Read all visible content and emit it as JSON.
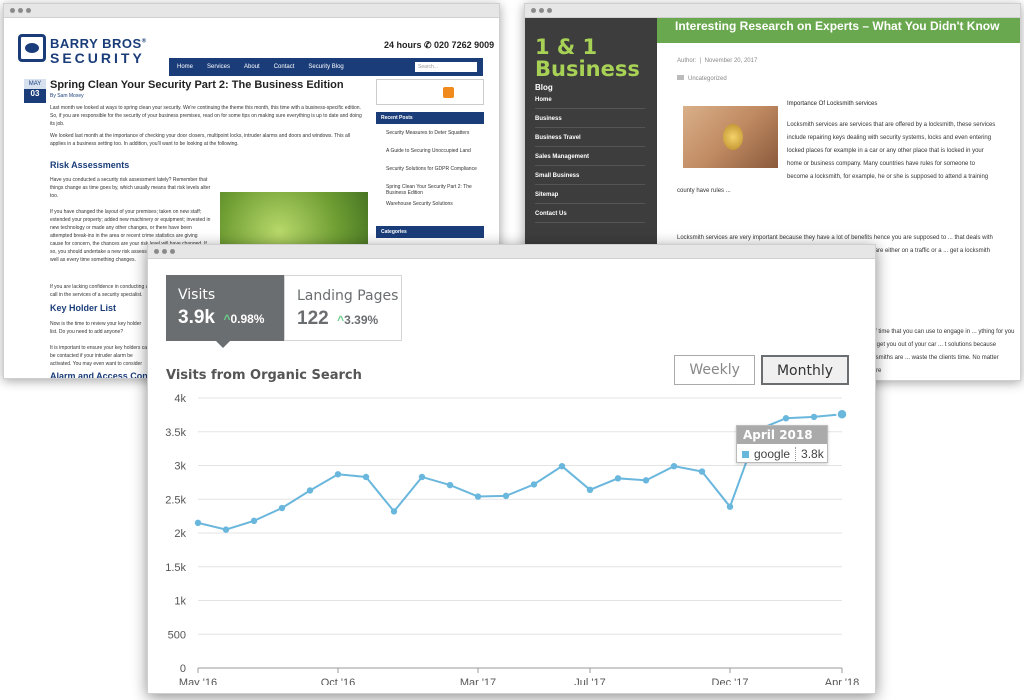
{
  "win1": {
    "brand_line1": "BARRY BROS",
    "brand_reg": "®",
    "brand_line2": "SECURITY",
    "hours": "24 hours",
    "phone": "✆ 020 7262 9009",
    "nav": [
      "Home",
      "Services",
      "About",
      "Contact",
      "Security Blog"
    ],
    "search_placeholder": "Search...",
    "date_month": "MAY",
    "date_day": "03",
    "post_title": "Spring Clean Your Security Part 2: The Business Edition",
    "byline": "By Sam Moxey",
    "para1": "Last month we looked at ways to spring clean your security. We're continuing the theme this month, this time with a business-specific edition. So, if you are responsible for the security of your business premises, read on for some tips on making sure everything is up to date and doing its job.",
    "para2": "We looked last month at the importance of checking your door closers, multipoint locks, intruder alarms and doors and windows. This all applies in a business setting too. In addition, you'll want to be looking at the following.",
    "heading_risk": "Risk Assessments",
    "para3": "Have you conducted a security risk assessment lately? Remember that things change as time goes by, which usually means that risk levels alter too.",
    "para4": "If you have changed the layout of your premises; taken on new staff; extended your property; added new machinery or equipment; invested in new technology or made any other changes, or there have been attempted break-ins in the area or recent crime statistics are giving cause for concern, the chances are your risk level will have changed. If so, you should undertake a new risk assessment on a regular basis, as well as every time something changes.",
    "para5": "If you are lacking confidence in conducting a security risk assessment, call in the services of a security specialist.",
    "heading_key": "Key Holder List",
    "para6": "Now is the time to review your key holder list. Do you need to add anyone?",
    "para7": "It is important to ensure your key holders can be contacted if your intruder alarm be activated. You may even want to consider key holders in the small hours. Take time to...",
    "heading_alarm": "Alarm and Access Control",
    "recent_posts_title": "Recent Posts",
    "recent_posts": [
      "Security Measures to Deter Squatters",
      "A Guide to Securing Unoccupied Land",
      "Security Solutions for GDPR Compliance",
      "Spring Clean Your Security Part 2: The Business Edition",
      "Warehouse Security Solutions"
    ],
    "categories_title": "Categories"
  },
  "win2": {
    "brand": "1 & 1 Business",
    "blog_label": "Blog",
    "menu": [
      "Home",
      "Business",
      "Business Travel",
      "Sales Management",
      "Small Business",
      "Sitemap",
      "Contact Us"
    ],
    "article_title": "Interesting Research on Experts – What You Didn't Know",
    "author_label": "Author:",
    "date": "November 20, 2017",
    "category": "Uncategorized",
    "paragraph_title": "Importance Of Locksmith services",
    "para1": "Locksmith services are services that are offered by a locksmith, these services include repairing keys dealing with security systems, locks and even entering locked places for example in a car or any other place that is locked in your home or business company. Many countries have rules for someone to become a locksmith, for example, he or she is supposed to attend a training institution or university and has a certificate. A locksmith will require a lot of training because their services stretch further apart from just replacing locks hence he or she will a lot of time to become a professional.",
    "para2": "Locksmith services are very important because they have a lot of benefits hence you are supposed to ... that deals with security systems. The ... locksmiths are available everywhere ... r and you are either on a traffic or a ... get a locksmith immediately when you ... e them in the field, and you will be",
    "para3": "... of time that you can use to engage in ... ything for you and get you out of your car ... t solutions because locksmiths are ... waste the clients time. No matter where"
  },
  "win3": {
    "tabs": [
      {
        "label": "Visits",
        "value": "3.9k",
        "change": "0.98%"
      },
      {
        "label": "Landing Pages",
        "value": "122",
        "change": "3.39%"
      }
    ],
    "arrow_glyph": "^",
    "periods": [
      "Weekly",
      "Monthly"
    ],
    "chart_title": "Visits from Organic Search",
    "tooltip": {
      "title": "April 2018",
      "series": "google",
      "value": "3.8k"
    }
  },
  "chart_data": {
    "type": "line",
    "title": "Visits from Organic Search",
    "x": [
      "May '16",
      "Jun '16",
      "Jul '16",
      "Aug '16",
      "Sep '16",
      "Oct '16",
      "Nov '16",
      "Dec '16",
      "Jan '17",
      "Feb '17",
      "Mar '17",
      "Apr '17",
      "May '17",
      "Jun '17",
      "Jul '17",
      "Aug '17",
      "Sep '17",
      "Oct '17",
      "Nov '17",
      "Dec '17",
      "Jan '18",
      "Feb '18",
      "Mar '18",
      "Apr '18"
    ],
    "x_tick_labels": [
      "May '16",
      "Oct '16",
      "Mar '17",
      "Jul '17",
      "Dec '17",
      "Apr '18"
    ],
    "x_tick_indices": [
      0,
      5,
      10,
      14,
      19,
      23
    ],
    "series": [
      {
        "name": "google",
        "color": "#6ab7dd",
        "values": [
          2150,
          2050,
          2180,
          2370,
          2630,
          2870,
          2830,
          2320,
          2830,
          2710,
          2540,
          2550,
          2720,
          2990,
          2640,
          2810,
          2780,
          2990,
          2910,
          2390,
          3530,
          3700,
          3720,
          3760
        ]
      }
    ],
    "y_ticks": [
      "0",
      "500",
      "1k",
      "1.5k",
      "2k",
      "2.5k",
      "3k",
      "3.5k",
      "4k"
    ],
    "ylim": [
      0,
      4000
    ],
    "grid": true,
    "legend": "none"
  }
}
